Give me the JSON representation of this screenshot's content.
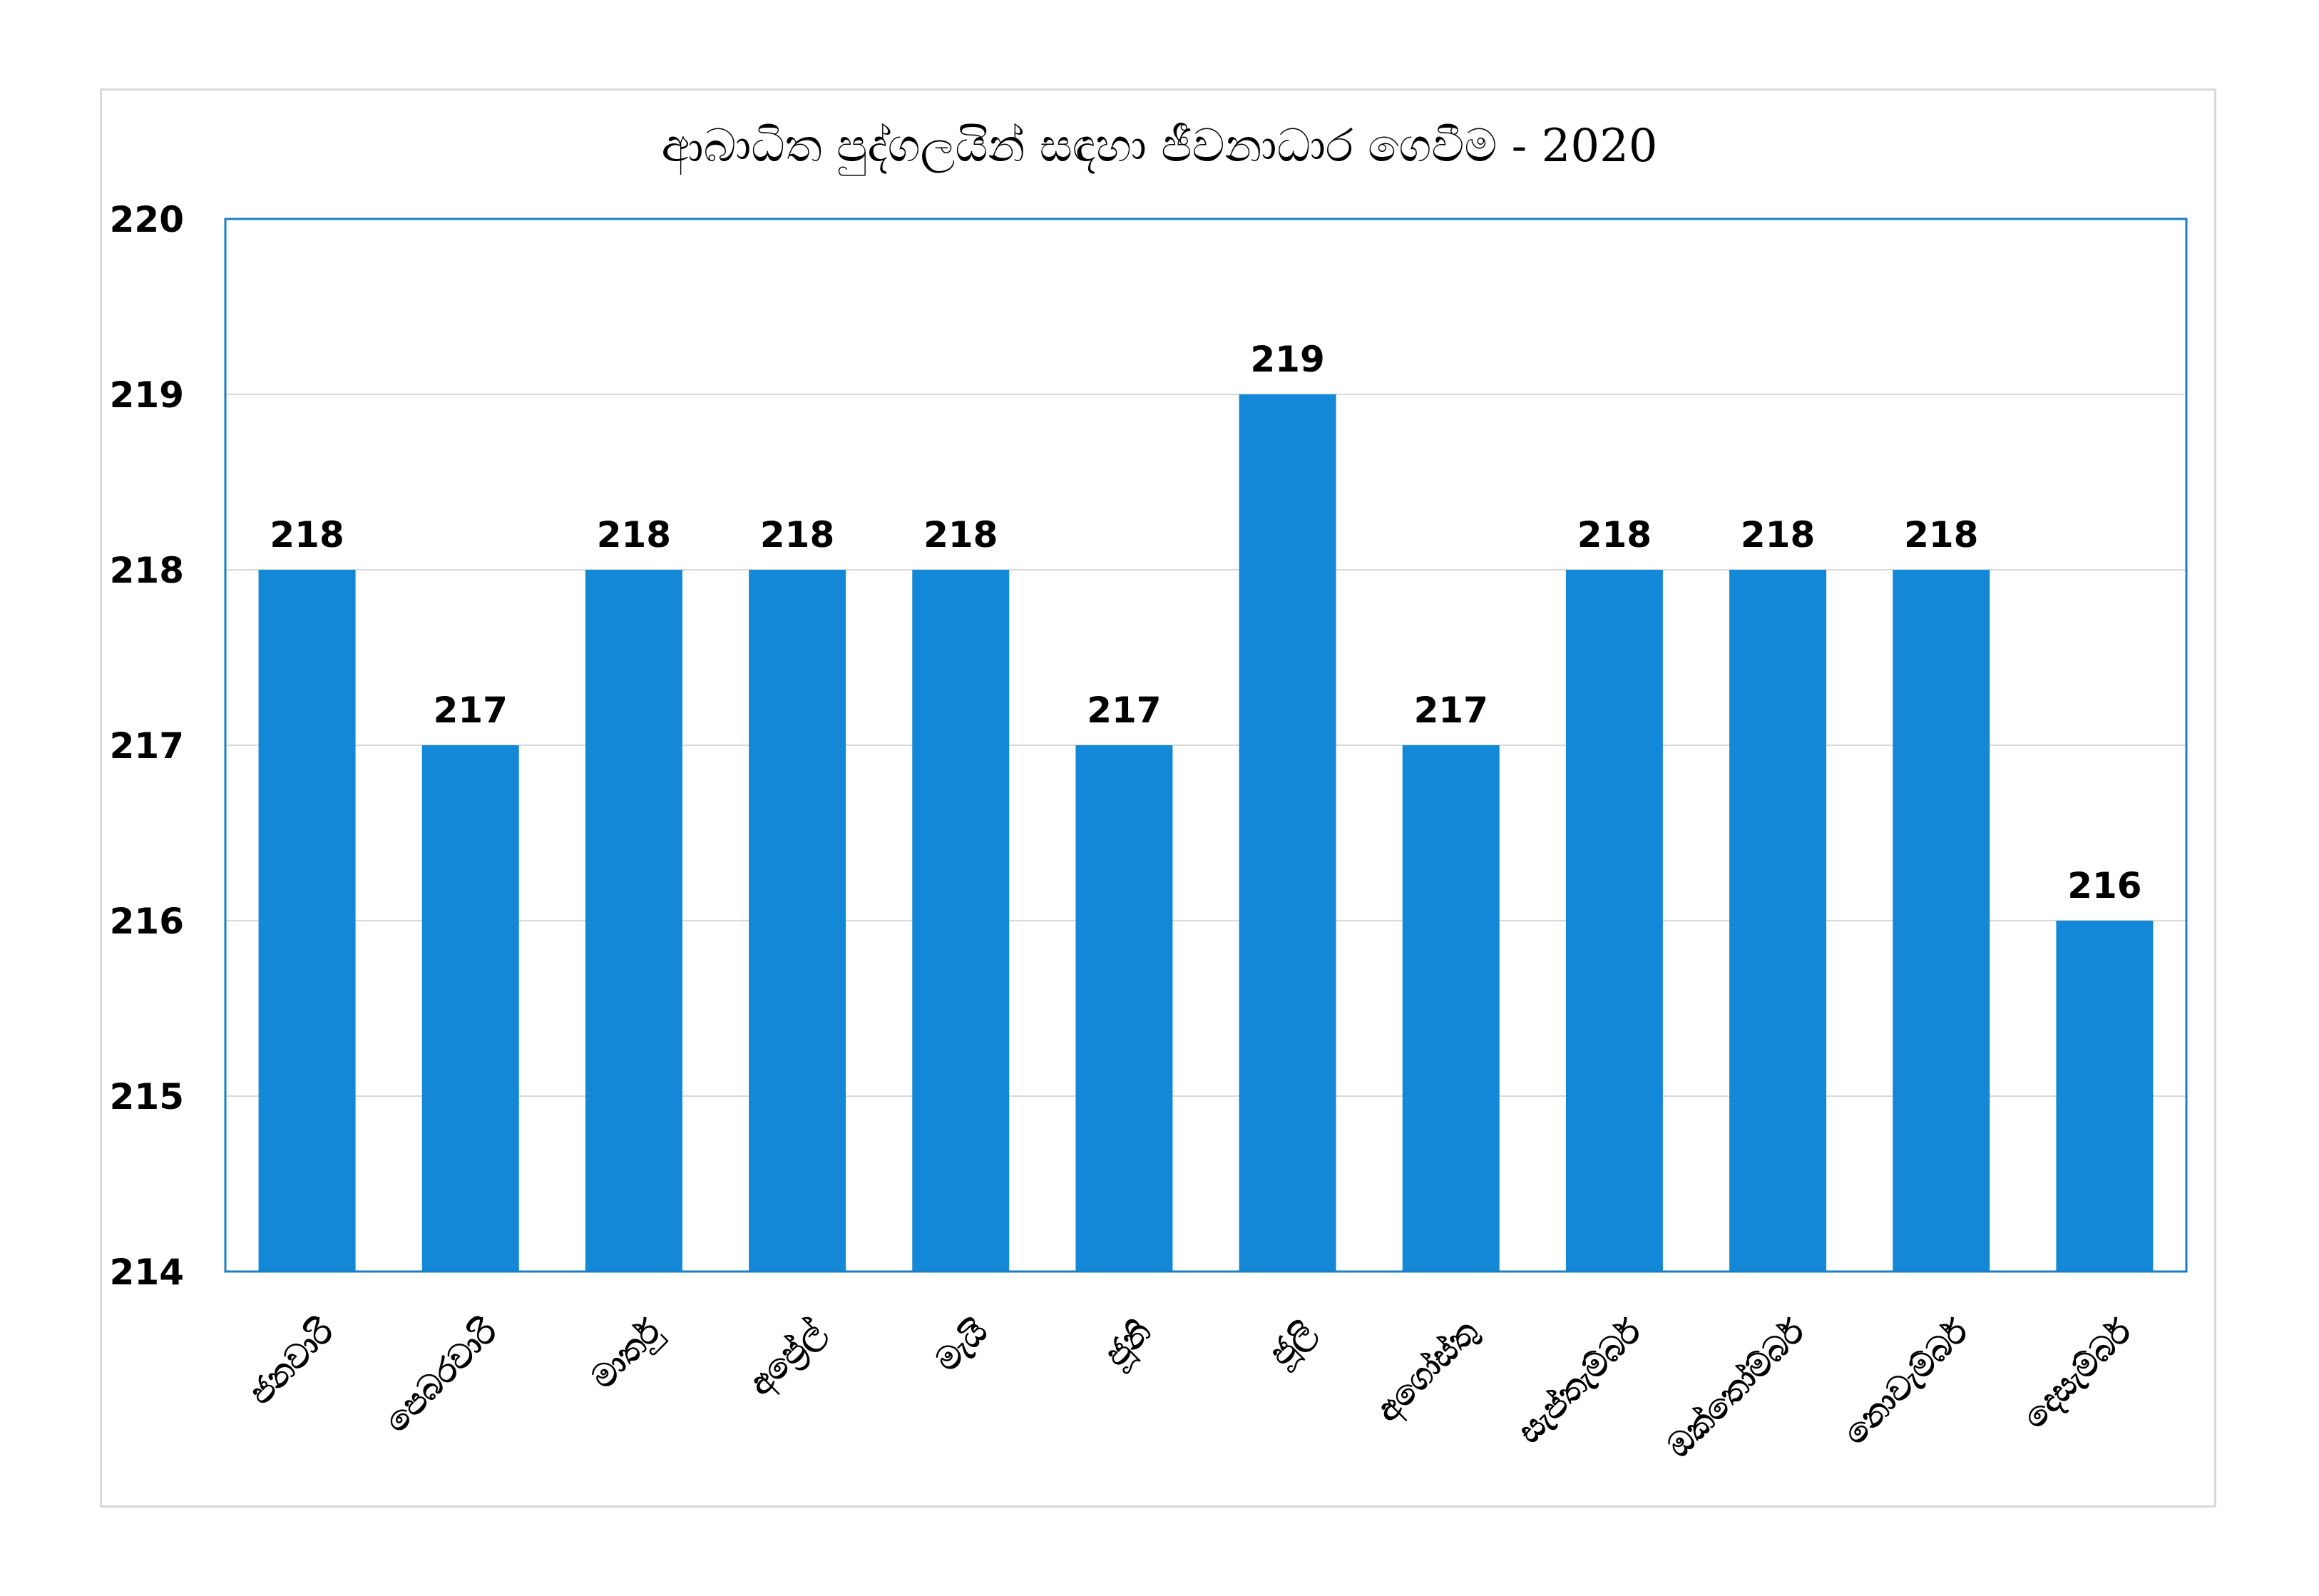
{
  "chart_data": {
    "type": "bar",
    "title": "ආබාධිත පුද්ගලයින් සඳහා ජීවනාධාර ගෙවීම - 2020",
    "xlabel": "",
    "ylabel": "",
    "categories": [
      "ජනවාරි",
      "පෙබරවාරි",
      "මාර්තු",
      "අප්‍රේල්",
      "මැයි",
      "ජූනි",
      "ජූලි",
      "අගෝස්තු",
      "සැප්තැම්බර්",
      "ඔක්තෝම්බර්",
      "නොවැම්බර්",
      "දෙසැම්බර්"
    ],
    "values": [
      218,
      217,
      218,
      218,
      218,
      217,
      219,
      217,
      218,
      218,
      218,
      216
    ],
    "ylim": [
      214,
      220
    ],
    "yticks": [
      "214",
      "215",
      "216",
      "217",
      "218",
      "219",
      "220"
    ],
    "grid": true,
    "bar_color": "#1388d6",
    "data_labels": true
  }
}
